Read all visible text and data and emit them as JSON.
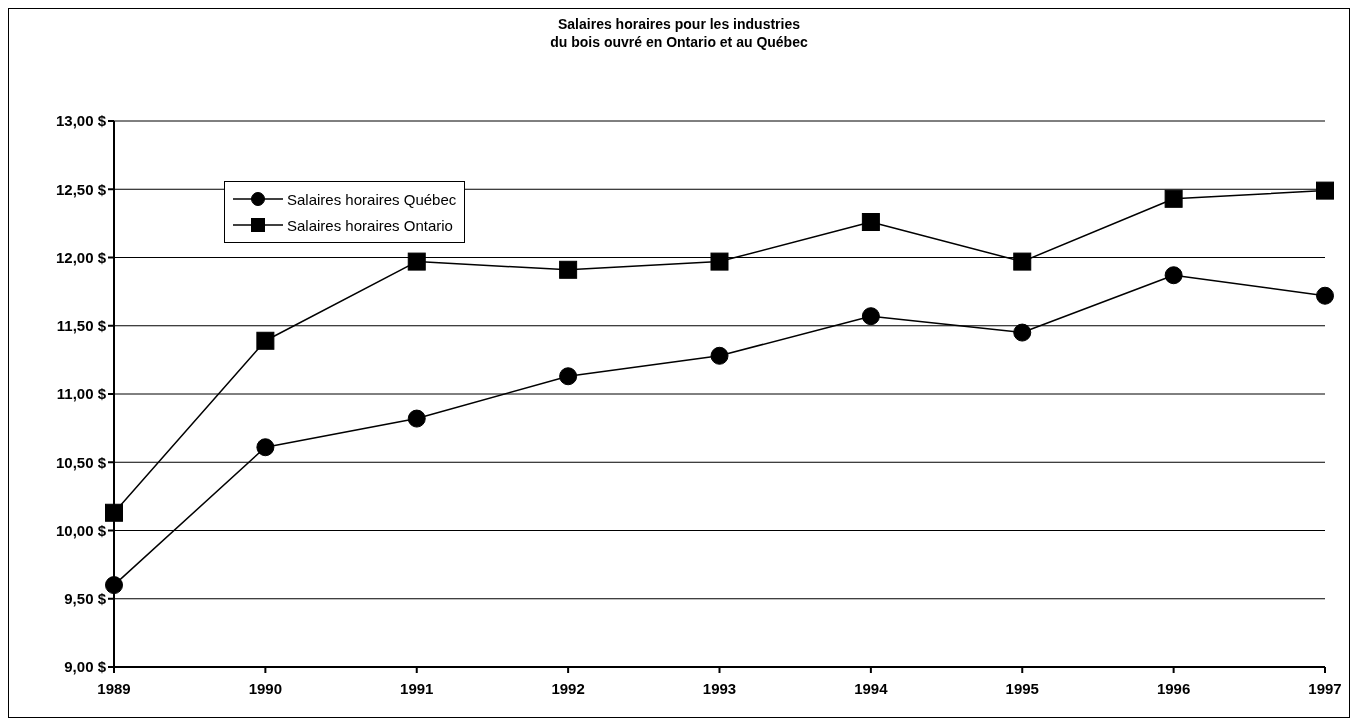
{
  "chart_data": {
    "type": "line",
    "title": "Salaires horaires pour les industries\ndu bois ouvré en Ontario et au Québec",
    "categories": [
      "1989",
      "1990",
      "1991",
      "1992",
      "1993",
      "1994",
      "1995",
      "1996",
      "1997"
    ],
    "series": [
      {
        "name": "Salaires horaires Québec",
        "color": "#000000",
        "marker": "circle",
        "values": [
          9.6,
          10.61,
          10.82,
          11.13,
          11.28,
          11.57,
          11.45,
          11.87,
          11.72
        ]
      },
      {
        "name": "Salaires horaires Ontario",
        "color": "#000000",
        "marker": "square",
        "values": [
          10.13,
          11.39,
          11.97,
          11.91,
          11.97,
          12.26,
          11.97,
          12.43,
          12.49
        ]
      }
    ],
    "ylim": [
      9,
      13
    ],
    "yticks": [
      {
        "value": 9,
        "label": "9,00 $"
      },
      {
        "value": 9.5,
        "label": "9,50 $"
      },
      {
        "value": 10,
        "label": "10,00 $"
      },
      {
        "value": 10.5,
        "label": "10,50 $"
      },
      {
        "value": 11,
        "label": "11,00 $"
      },
      {
        "value": 11.5,
        "label": "11,50 $"
      },
      {
        "value": 12,
        "label": "12,00 $"
      },
      {
        "value": 12.5,
        "label": "12,50 $"
      },
      {
        "value": 13,
        "label": "13,00 $"
      }
    ],
    "grid": "y",
    "legend": "top left",
    "line_style": "solid"
  }
}
